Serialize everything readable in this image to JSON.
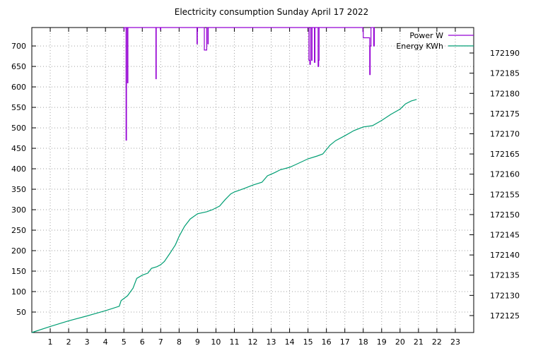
{
  "chart_data": {
    "type": "line",
    "title": "Electricity consumption Sunday April 17 2022",
    "xlabel": "",
    "ylabel": "",
    "y2label": "",
    "xlim": [
      0,
      24
    ],
    "ylim": [
      0,
      745
    ],
    "y2lim": [
      172120.8,
      172196.3
    ],
    "grid": true,
    "legend_position": "top-right",
    "x_ticks": [
      1,
      2,
      3,
      4,
      5,
      6,
      7,
      8,
      9,
      10,
      11,
      12,
      13,
      14,
      15,
      16,
      17,
      18,
      19,
      20,
      21,
      22,
      23
    ],
    "y_ticks": [
      50,
      100,
      150,
      200,
      250,
      300,
      350,
      400,
      450,
      500,
      550,
      600,
      650,
      700
    ],
    "y2_ticks": [
      172125,
      172130,
      172135,
      172140,
      172145,
      172150,
      172155,
      172160,
      172165,
      172170,
      172175,
      172180,
      172185,
      172190
    ],
    "series": [
      {
        "name": "Power W",
        "axis": "y",
        "color": "#9400d3",
        "points": [
          [
            5.0,
            745
          ],
          [
            5.0,
            740
          ],
          [
            5.02,
            740
          ],
          [
            5.02,
            745
          ],
          [
            5.12,
            745
          ],
          [
            5.12,
            470
          ],
          [
            5.14,
            470
          ],
          [
            5.14,
            745
          ],
          [
            5.2,
            745
          ],
          [
            5.2,
            610
          ],
          [
            5.22,
            610
          ],
          [
            5.22,
            745
          ],
          [
            6.74,
            745
          ],
          [
            6.74,
            620
          ],
          [
            6.76,
            620
          ],
          [
            6.76,
            745
          ],
          [
            6.98,
            745
          ],
          [
            6.98,
            740
          ],
          [
            7.0,
            740
          ],
          [
            7.0,
            745
          ],
          [
            8.97,
            745
          ],
          [
            8.97,
            705
          ],
          [
            8.99,
            705
          ],
          [
            8.99,
            745
          ],
          [
            9.37,
            745
          ],
          [
            9.37,
            690
          ],
          [
            9.5,
            690
          ],
          [
            9.5,
            745
          ],
          [
            9.56,
            745
          ],
          [
            9.56,
            705
          ],
          [
            9.58,
            705
          ],
          [
            9.58,
            745
          ],
          [
            15.05,
            745
          ],
          [
            15.05,
            665
          ],
          [
            15.1,
            665
          ],
          [
            15.1,
            655
          ],
          [
            15.13,
            655
          ],
          [
            15.13,
            745
          ],
          [
            15.2,
            745
          ],
          [
            15.2,
            665
          ],
          [
            15.22,
            665
          ],
          [
            15.22,
            745
          ],
          [
            15.35,
            745
          ],
          [
            15.35,
            660
          ],
          [
            15.38,
            660
          ],
          [
            15.38,
            745
          ],
          [
            15.55,
            745
          ],
          [
            15.55,
            650
          ],
          [
            15.58,
            650
          ],
          [
            15.58,
            665
          ],
          [
            15.6,
            665
          ],
          [
            15.6,
            745
          ],
          [
            17.98,
            745
          ],
          [
            17.98,
            735
          ],
          [
            18.0,
            735
          ],
          [
            18.0,
            720
          ],
          [
            18.35,
            720
          ],
          [
            18.35,
            630
          ],
          [
            18.38,
            630
          ],
          [
            18.38,
            700
          ],
          [
            18.42,
            700
          ],
          [
            18.42,
            745
          ],
          [
            18.57,
            745
          ],
          [
            18.57,
            700
          ],
          [
            18.6,
            700
          ],
          [
            18.6,
            745
          ]
        ]
      },
      {
        "name": "Energy KWh",
        "axis": "y2",
        "color": "#009e73",
        "points": [
          [
            0,
            172120.8
          ],
          [
            1.0,
            172122.3
          ],
          [
            2.0,
            172123.7
          ],
          [
            3.0,
            172124.9
          ],
          [
            4.0,
            172126.2
          ],
          [
            4.75,
            172127.3
          ],
          [
            4.85,
            172128.7
          ],
          [
            5.0,
            172129.2
          ],
          [
            5.2,
            172129.9
          ],
          [
            5.5,
            172131.8
          ],
          [
            5.7,
            172134.2
          ],
          [
            6.0,
            172135.0
          ],
          [
            6.3,
            172135.5
          ],
          [
            6.5,
            172136.7
          ],
          [
            6.8,
            172137.1
          ],
          [
            7.0,
            172137.6
          ],
          [
            7.2,
            172138.4
          ],
          [
            7.5,
            172140.4
          ],
          [
            7.8,
            172142.5
          ],
          [
            8.0,
            172144.6
          ],
          [
            8.3,
            172147.1
          ],
          [
            8.6,
            172148.9
          ],
          [
            9.0,
            172150.2
          ],
          [
            9.5,
            172150.7
          ],
          [
            9.8,
            172151.2
          ],
          [
            10.2,
            172152.1
          ],
          [
            10.5,
            172153.7
          ],
          [
            10.8,
            172155.1
          ],
          [
            11.0,
            172155.6
          ],
          [
            11.5,
            172156.4
          ],
          [
            12.0,
            172157.3
          ],
          [
            12.5,
            172158.0
          ],
          [
            12.8,
            172159.6
          ],
          [
            13.2,
            172160.4
          ],
          [
            13.5,
            172161.1
          ],
          [
            14.0,
            172161.7
          ],
          [
            14.3,
            172162.3
          ],
          [
            15.0,
            172163.8
          ],
          [
            15.5,
            172164.5
          ],
          [
            15.8,
            172165.0
          ],
          [
            16.2,
            172167.2
          ],
          [
            16.5,
            172168.3
          ],
          [
            17.0,
            172169.5
          ],
          [
            17.5,
            172170.8
          ],
          [
            18.0,
            172171.7
          ],
          [
            18.5,
            172172.0
          ],
          [
            19.0,
            172173.3
          ],
          [
            19.5,
            172174.8
          ],
          [
            20.0,
            172176.1
          ],
          [
            20.3,
            172177.4
          ],
          [
            20.6,
            172178.1
          ],
          [
            20.9,
            172178.5
          ]
        ]
      }
    ]
  }
}
